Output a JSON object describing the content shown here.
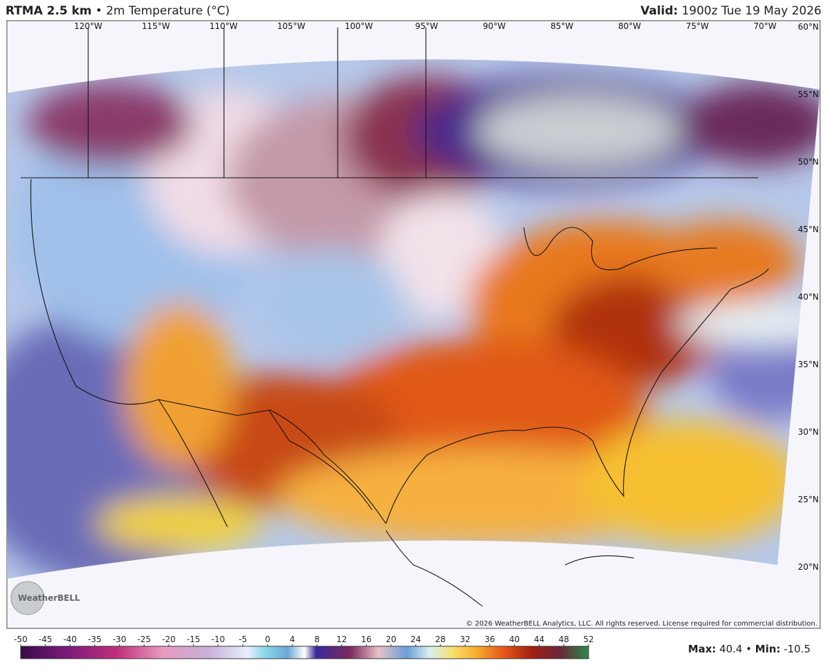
{
  "header": {
    "title": "RTMA 2.5 km",
    "separator": "•",
    "subtitle": "2m Temperature (°C)",
    "valid_label": "Valid:",
    "valid_time": "1900z Tue 19 May 2026"
  },
  "map": {
    "longitude_labels": [
      "120°W",
      "115°W",
      "110°W",
      "105°W",
      "100°W",
      "95°W",
      "90°W",
      "85°W",
      "80°W",
      "75°W",
      "70°W"
    ],
    "latitude_labels": [
      "60°N",
      "55°N",
      "50°N",
      "45°N",
      "40°N",
      "35°N",
      "30°N",
      "25°N",
      "20°N"
    ],
    "logo": "WeatherBELL",
    "copyright": "© 2026 WeatherBELL Analytics, LLC. All rights reserved. License required for commercial distribution."
  },
  "colorbar": {
    "ticks": [
      -50,
      -45,
      -40,
      -35,
      -30,
      -25,
      -20,
      -15,
      -10,
      -5,
      0,
      4,
      8,
      12,
      16,
      20,
      24,
      28,
      32,
      36,
      40,
      44,
      48,
      52
    ]
  },
  "footer": {
    "max_label": "Max:",
    "max": 40.4,
    "min_label": "Min:",
    "min": -10.5
  }
}
